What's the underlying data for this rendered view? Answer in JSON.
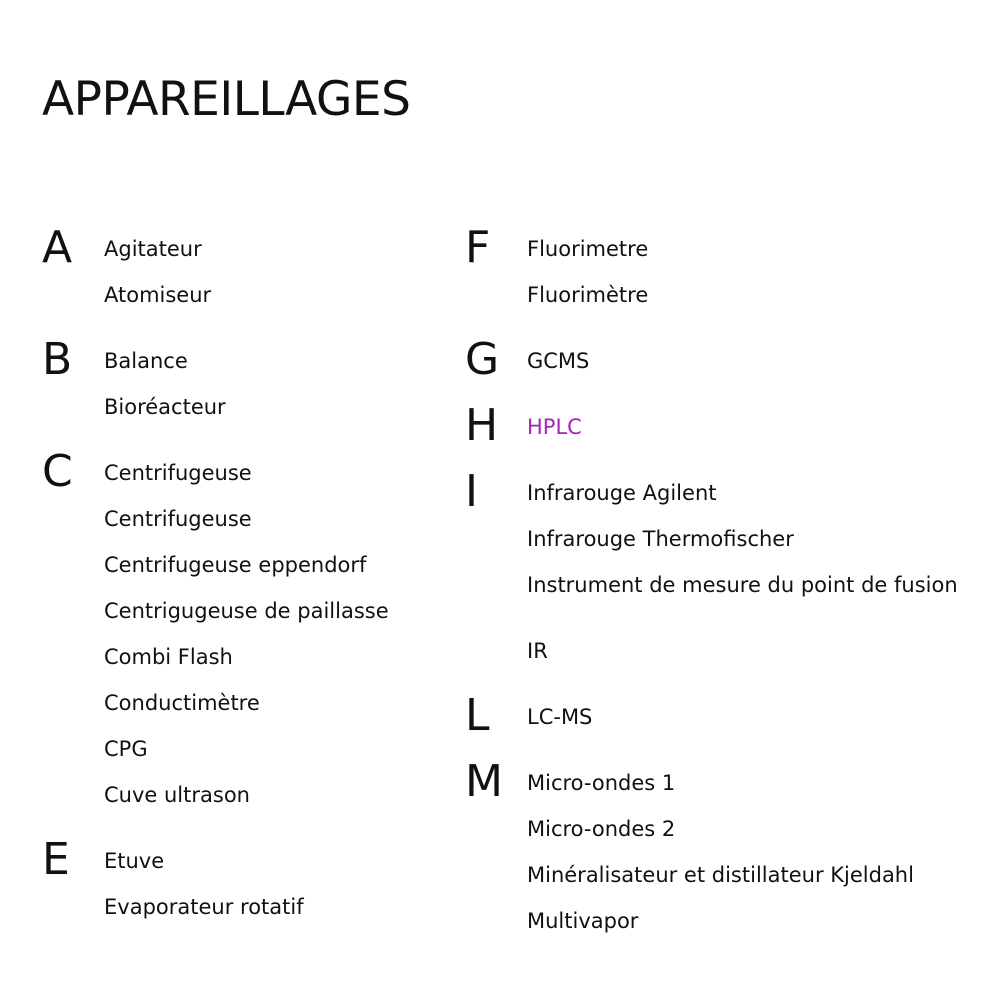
{
  "title": "APPAREILLAGES",
  "colors": {
    "accent": "#a626b3",
    "text": "#111111",
    "background": "#ffffff"
  },
  "left": [
    {
      "letter": "A",
      "items": [
        "Agitateur",
        "Atomiseur"
      ]
    },
    {
      "letter": "B",
      "items": [
        "Balance",
        "Bioréacteur"
      ]
    },
    {
      "letter": "C",
      "items": [
        "Centrifugeuse",
        "Centrifugeuse",
        "Centrifugeuse eppendorf",
        "Centrigugeuse de paillasse",
        "Combi Flash",
        "Conductimètre",
        "CPG",
        "Cuve ultrason"
      ]
    },
    {
      "letter": "E",
      "items": [
        "Etuve",
        "Evaporateur rotatif"
      ]
    }
  ],
  "right": [
    {
      "letter": "F",
      "items": [
        "Fluorimetre",
        "Fluorimètre"
      ]
    },
    {
      "letter": "G",
      "items": [
        "GCMS"
      ]
    },
    {
      "letter": "H",
      "items": [
        "HPLC"
      ]
    },
    {
      "letter": "I",
      "items": [
        "Infrarouge Agilent",
        "Infrarouge Thermofischer",
        "Instrument de mesure du point de fusion",
        "IR"
      ]
    },
    {
      "letter": "L",
      "items": [
        "LC-MS"
      ]
    },
    {
      "letter": "M",
      "items": [
        "Micro-ondes 1",
        "Micro-ondes 2",
        "Minéralisateur et distillateur Kjeldahl",
        "Multivapor"
      ]
    }
  ]
}
